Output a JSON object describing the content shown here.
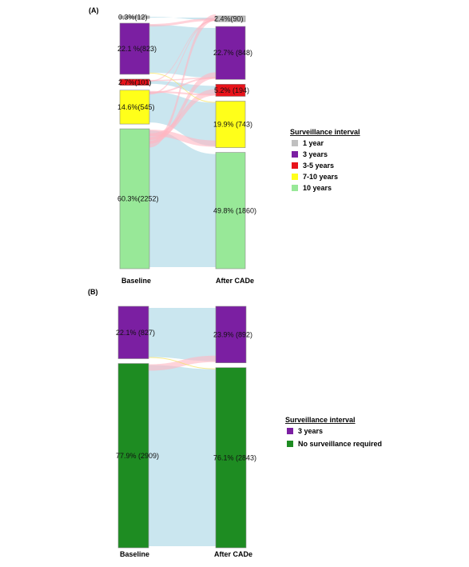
{
  "chart_data": [
    {
      "type": "sankey",
      "panel_label": "(A)",
      "stage_labels": [
        "Baseline",
        "After CADe"
      ],
      "legend_title": "Surveillance interval",
      "categories": [
        {
          "name": "1 year",
          "color": "#c0c0c0"
        },
        {
          "name": "3 years",
          "color": "#7b1fa2"
        },
        {
          "name": "3-5 years",
          "color": "#e8131a"
        },
        {
          "name": "7-10 years",
          "color": "#ffff1a"
        },
        {
          "name": "10 years",
          "color": "#98e898"
        }
      ],
      "baseline": [
        {
          "category": "1 year",
          "label": "0.3%(12)",
          "count": 12
        },
        {
          "category": "3 years",
          "label": "22.1 %(823)",
          "count": 823
        },
        {
          "category": "3-5 years",
          "label": "2.7%(101)",
          "count": 101
        },
        {
          "category": "7-10 years",
          "label": "14.6%(545)",
          "count": 545
        },
        {
          "category": "10 years",
          "label": "60.3%(2252)",
          "count": 2252
        }
      ],
      "after": [
        {
          "category": "1 year",
          "label": "2.4%(90)",
          "count": 90
        },
        {
          "category": "3 years",
          "label": "22.7% (848)",
          "count": 848
        },
        {
          "category": "3-5 years",
          "label": "5.2% (194)",
          "count": 194
        },
        {
          "category": "7-10 years",
          "label": "19.9% (743)",
          "count": 743
        },
        {
          "category": "10 years",
          "label": "49.8% (1860)",
          "count": 1860
        }
      ]
    },
    {
      "type": "sankey",
      "panel_label": "(B)",
      "stage_labels": [
        "Baseline",
        "After CADe"
      ],
      "legend_title": "Surveillance interval",
      "categories": [
        {
          "name": "3 years",
          "color": "#7b1fa2"
        },
        {
          "name": "No surveillance required",
          "color": "#1e8c22"
        }
      ],
      "baseline": [
        {
          "category": "3 years",
          "label": "22.1% (827)",
          "count": 827
        },
        {
          "category": "No surveillance required",
          "label": "77.9% (2909)",
          "count": 2909
        }
      ],
      "after": [
        {
          "category": "3 years",
          "label": "23.9% (892)",
          "count": 892
        },
        {
          "category": "No surveillance required",
          "label": "76.1% (2843)",
          "count": 2843
        }
      ]
    }
  ]
}
